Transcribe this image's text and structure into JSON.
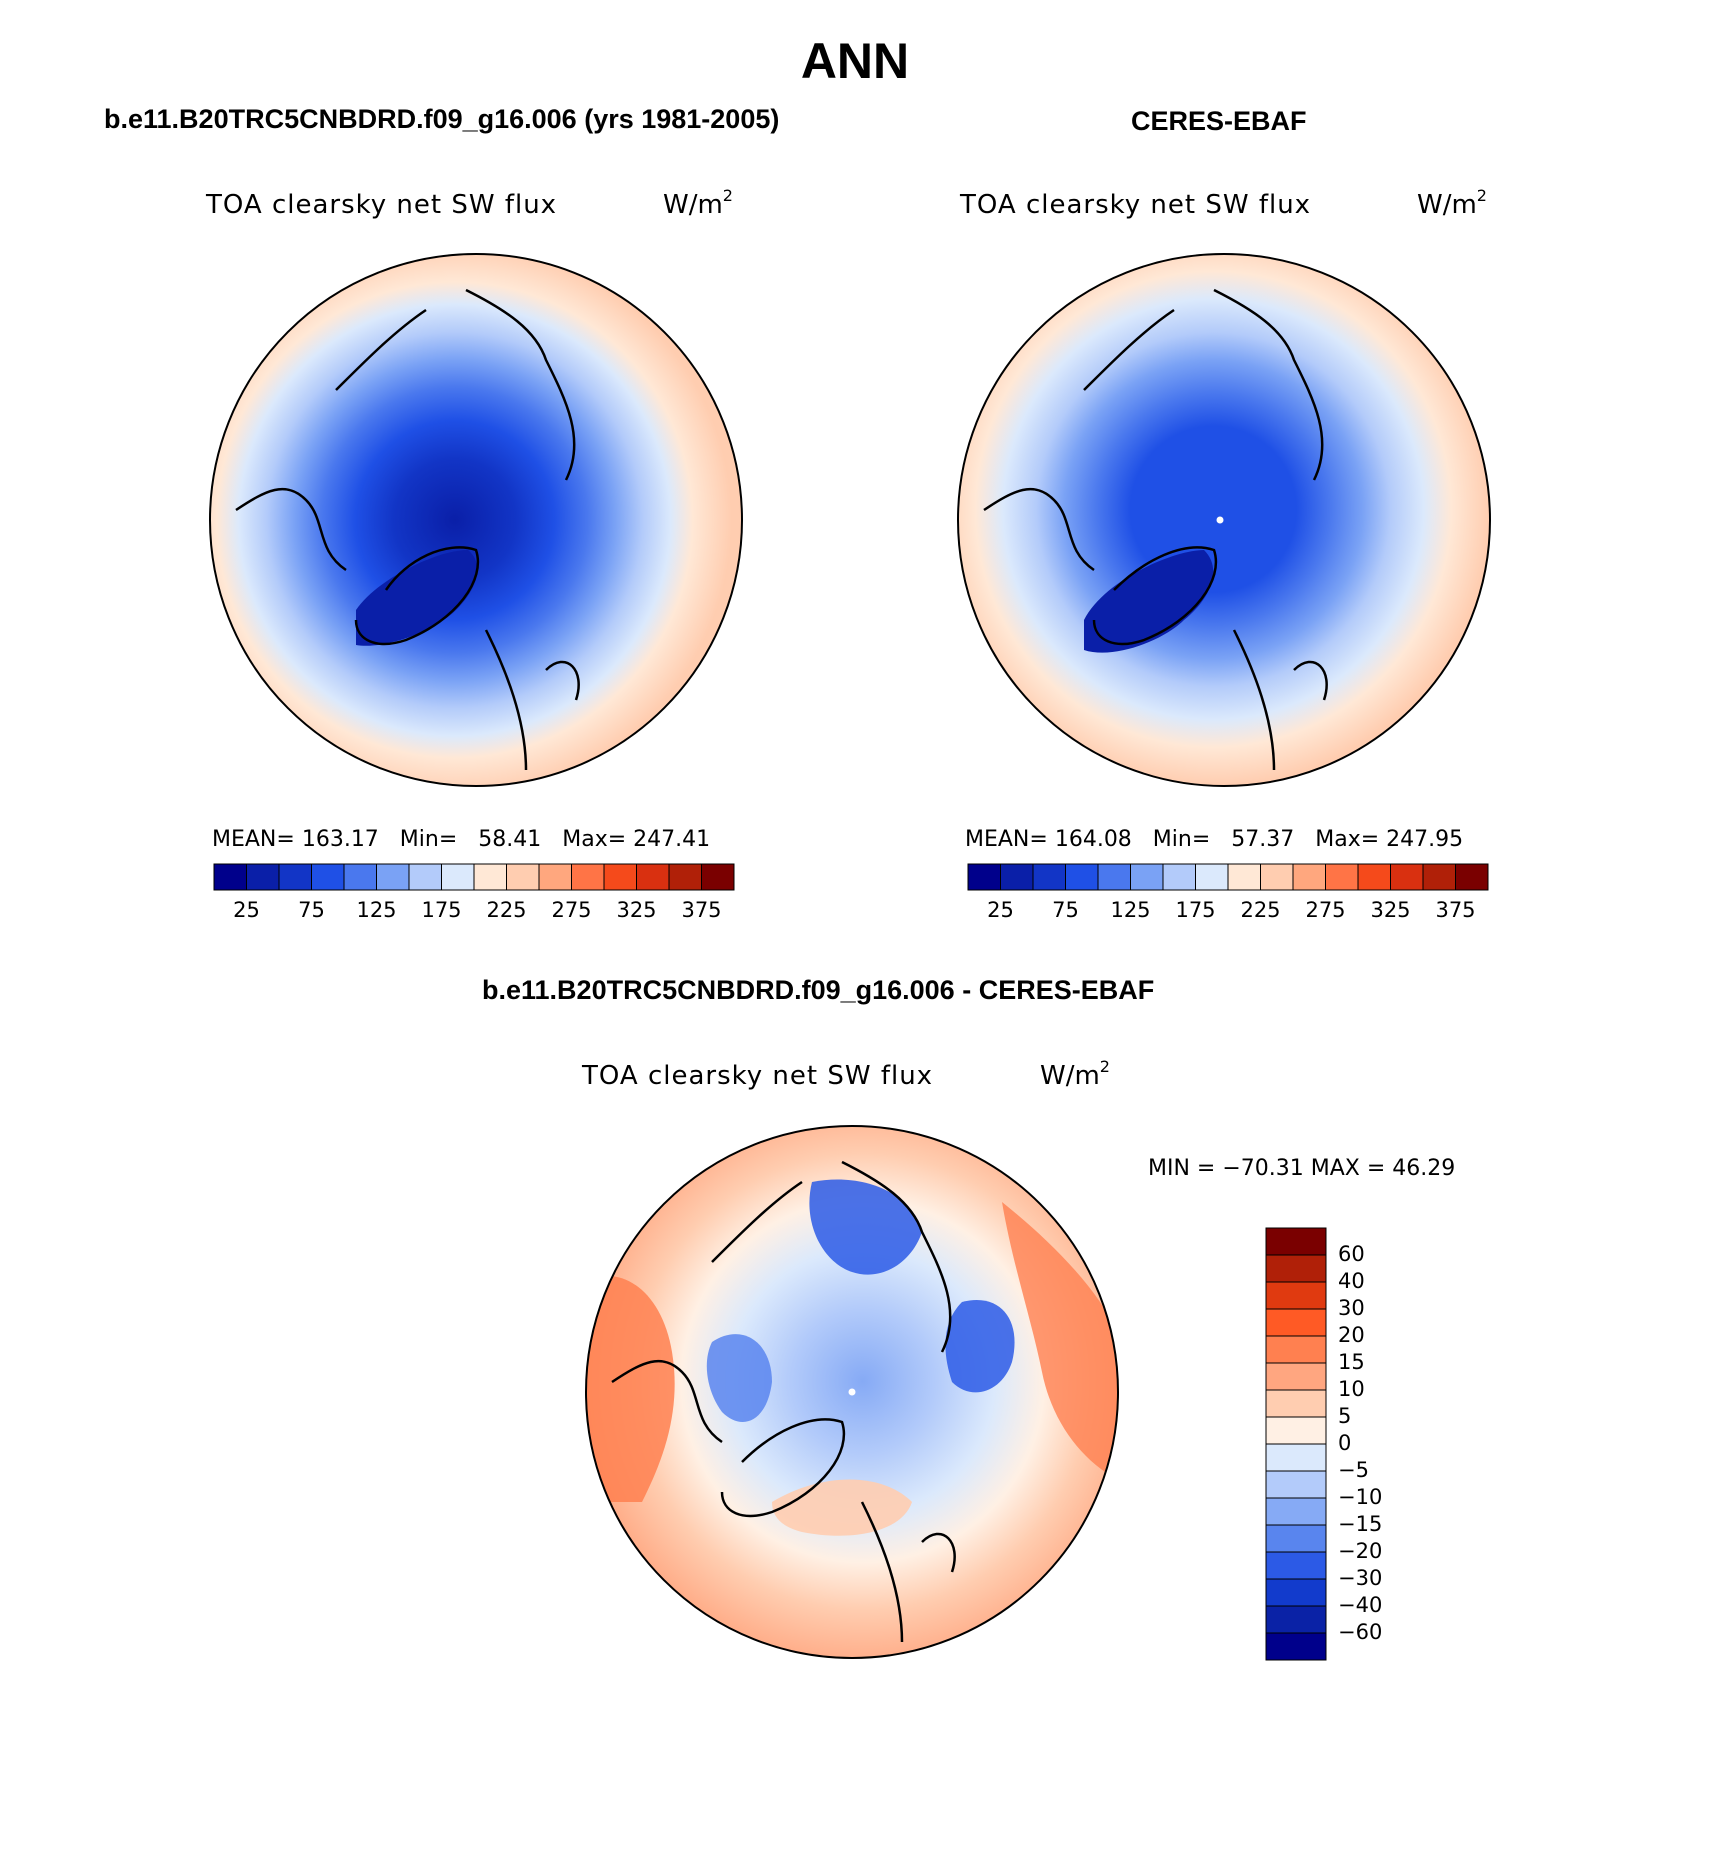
{
  "figure": {
    "title": "ANN"
  },
  "panels": [
    {
      "case": "b.e11.B20TRC5CNBDRD.f09_g16.006 (yrs 1981-2005)",
      "variable": "TOA clearsky net SW flux",
      "units_text": "W/m",
      "units_sup": "2",
      "stats": {
        "mean_label": "MEAN=",
        "mean": "163.17",
        "min_label": "Min=",
        "min": "58.41",
        "max_label": "Max=",
        "max": "247.41"
      }
    },
    {
      "case": "CERES-EBAF",
      "variable": "TOA clearsky net SW flux",
      "units_text": "W/m",
      "units_sup": "2",
      "stats": {
        "mean_label": "MEAN=",
        "mean": "164.08",
        "min_label": "Min=",
        "min": "57.37",
        "max_label": "Max=",
        "max": "247.95"
      }
    },
    {
      "case": "b.e11.B20TRC5CNBDRD.f09_g16.006 - CERES-EBAF",
      "variable": "TOA clearsky net SW flux",
      "units_text": "W/m",
      "units_sup": "2",
      "minmax": "MIN = −70.31 MAX =  46.29"
    }
  ],
  "colorbar_abs": {
    "ticks": [
      "25",
      "75",
      "125",
      "175",
      "225",
      "275",
      "325",
      "375"
    ],
    "colors": [
      "#00008b",
      "#0a1fa8",
      "#1235c6",
      "#1f50e6",
      "#4a78ee",
      "#7aa2f5",
      "#b3cbfa",
      "#dbe9fc",
      "#ffe8d6",
      "#ffcdb0",
      "#ffa77e",
      "#ff7446",
      "#f54a1b",
      "#d93010",
      "#b02008",
      "#7a0000"
    ]
  },
  "colorbar_diff": {
    "ticks": [
      "60",
      "40",
      "30",
      "20",
      "15",
      "10",
      "5",
      "0",
      "−5",
      "−10",
      "−15",
      "−20",
      "−30",
      "−40",
      "−60"
    ],
    "colors": [
      "#7a0000",
      "#b02008",
      "#e03a10",
      "#ff5a25",
      "#ff8050",
      "#ffa680",
      "#ffcdb0",
      "#fff0e4",
      "#dbe9fc",
      "#b3cbfa",
      "#86aaf5",
      "#5985ee",
      "#2c5ae6",
      "#123bcc",
      "#0a22a6",
      "#00008b"
    ]
  },
  "chart_data": {
    "type": "heatmap",
    "map_projection": "polar-stereographic (north)",
    "panels": [
      {
        "name": "b.e11.B20TRC5CNBDRD.f09_g16.006 (yrs 1981-2005)",
        "mean": 163.17,
        "min": 58.41,
        "max": 247.41,
        "levels": [
          25,
          50,
          75,
          100,
          125,
          150,
          175,
          200,
          225,
          250,
          275,
          300,
          325,
          350,
          375
        ]
      },
      {
        "name": "CERES-EBAF",
        "mean": 164.08,
        "min": 57.37,
        "max": 247.95,
        "levels": [
          25,
          50,
          75,
          100,
          125,
          150,
          175,
          200,
          225,
          250,
          275,
          300,
          325,
          350,
          375
        ]
      },
      {
        "name": "b.e11.B20TRC5CNBDRD.f09_g16.006 - CERES-EBAF",
        "min": -70.31,
        "max": 46.29,
        "levels": [
          -60,
          -40,
          -30,
          -20,
          -15,
          -10,
          -5,
          0,
          5,
          10,
          15,
          20,
          30,
          40,
          60
        ]
      }
    ]
  }
}
